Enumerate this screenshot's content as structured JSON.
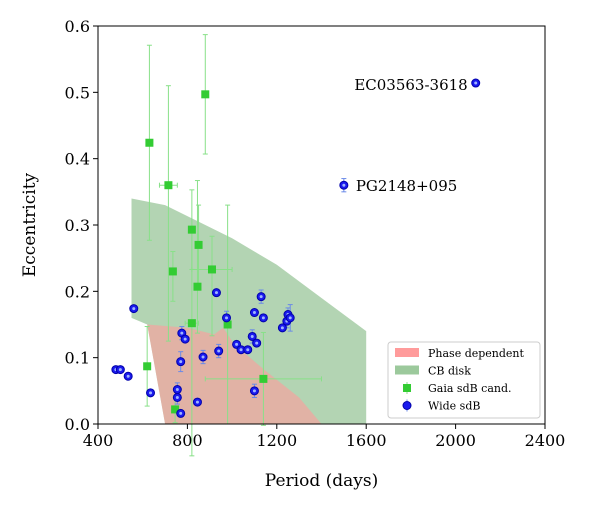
{
  "chart_data": {
    "type": "scatter",
    "xlabel": "Period (days)",
    "ylabel": "Eccentricity",
    "xlim": [
      400,
      2400
    ],
    "ylim": [
      0,
      0.6
    ],
    "xticks": [
      "400",
      "800",
      "1200",
      "1600",
      "2000",
      "2400"
    ],
    "yticks": [
      "0.0",
      "0.1",
      "0.2",
      "0.3",
      "0.4",
      "0.5",
      "0.6"
    ],
    "legend_position": "bottom-right",
    "legend": [
      {
        "label": "Phase dependent",
        "marker": "patch",
        "color": "#ff9b9b"
      },
      {
        "label": "CB disk",
        "marker": "patch",
        "color": "#9cc99c"
      },
      {
        "label": "Gaia sdB cand.",
        "marker": "square",
        "color": "#33cc33"
      },
      {
        "label": "Wide sdB",
        "marker": "circle",
        "color": "#1a1aee"
      }
    ],
    "regions": [
      {
        "name": "CB disk",
        "color": "#80b880",
        "polygon": [
          [
            550,
            0.34
          ],
          [
            700,
            0.33
          ],
          [
            1000,
            0.28
          ],
          [
            1200,
            0.24
          ],
          [
            1400,
            0.19
          ],
          [
            1600,
            0.14
          ],
          [
            1600,
            0.0
          ],
          [
            700,
            0.0
          ],
          [
            620,
            0.15
          ],
          [
            550,
            0.16
          ]
        ]
      },
      {
        "name": "Phase dependent",
        "color": "#ff9b9b",
        "polygon": [
          [
            620,
            0.15
          ],
          [
            800,
            0.145
          ],
          [
            920,
            0.135
          ],
          [
            960,
            0.145
          ],
          [
            1010,
            0.12
          ],
          [
            1150,
            0.08
          ],
          [
            1300,
            0.04
          ],
          [
            1400,
            0.0
          ],
          [
            700,
            0.0
          ]
        ]
      }
    ],
    "series": [
      {
        "name": "Gaia sdB cand.",
        "points": [
          {
            "x": 880,
            "y": 0.497,
            "yerr": [
              0.09,
              0.09
            ],
            "xerr": [
              0,
              0
            ]
          },
          {
            "x": 630,
            "y": 0.424,
            "yerr": [
              0.147,
              0.147
            ],
            "xerr": [
              0,
              0
            ]
          },
          {
            "x": 715,
            "y": 0.36,
            "yerr": [
              0.235,
              0.15
            ],
            "xerr": [
              40,
              40
            ]
          },
          {
            "x": 820,
            "y": 0.293,
            "yerr": [
              0.06,
              0.06
            ],
            "xerr": [
              0,
              0
            ]
          },
          {
            "x": 850,
            "y": 0.27,
            "yerr": [
              0.06,
              0.06
            ],
            "xerr": [
              0,
              0
            ]
          },
          {
            "x": 735,
            "y": 0.23,
            "yerr": [
              0.045,
              0.03
            ],
            "xerr": [
              0,
              0
            ]
          },
          {
            "x": 910,
            "y": 0.233,
            "yerr": [
              0.1,
              0.05
            ],
            "xerr": [
              90,
              90
            ]
          },
          {
            "x": 845,
            "y": 0.207,
            "yerr": [
              0.07,
              0.16
            ],
            "xerr": [
              0,
              0
            ]
          },
          {
            "x": 820,
            "y": 0.152,
            "yerr": [
              0.2,
              0.14
            ],
            "xerr": [
              30,
              30
            ]
          },
          {
            "x": 980,
            "y": 0.15,
            "yerr": [
              0.15,
              0.18
            ],
            "xerr": [
              0,
              0
            ]
          },
          {
            "x": 620,
            "y": 0.087,
            "yerr": [
              0.06,
              0.06
            ],
            "xerr": [
              0,
              0
            ]
          },
          {
            "x": 1140,
            "y": 0.068,
            "yerr": [
              0.07,
              0.07
            ],
            "xerr": [
              260,
              260
            ]
          },
          {
            "x": 745,
            "y": 0.022,
            "yerr": [
              0.02,
              0.02
            ],
            "xerr": [
              0,
              0
            ]
          }
        ]
      },
      {
        "name": "Wide sdB",
        "points": [
          {
            "x": 2090,
            "y": 0.514,
            "yerr": [
              0,
              0
            ],
            "xerr": [
              0,
              0
            ]
          },
          {
            "x": 1500,
            "y": 0.36,
            "yerr": [
              0.01,
              0.01
            ],
            "xerr": [
              0,
              0
            ]
          },
          {
            "x": 560,
            "y": 0.174,
            "yerr": [
              0,
              0
            ],
            "xerr": [
              0,
              0
            ]
          },
          {
            "x": 480,
            "y": 0.082,
            "yerr": [
              0,
              0
            ],
            "xerr": [
              0,
              0
            ]
          },
          {
            "x": 500,
            "y": 0.082,
            "yerr": [
              0,
              0
            ],
            "xerr": [
              0,
              0
            ]
          },
          {
            "x": 535,
            "y": 0.072,
            "yerr": [
              0,
              0
            ],
            "xerr": [
              0,
              0
            ]
          },
          {
            "x": 635,
            "y": 0.047,
            "yerr": [
              0,
              0
            ],
            "xerr": [
              0,
              0
            ]
          },
          {
            "x": 775,
            "y": 0.137,
            "yerr": [
              0.01,
              0.01
            ],
            "xerr": [
              0,
              0
            ]
          },
          {
            "x": 790,
            "y": 0.128,
            "yerr": [
              0,
              0
            ],
            "xerr": [
              0,
              0
            ]
          },
          {
            "x": 770,
            "y": 0.094,
            "yerr": [
              0.015,
              0.015
            ],
            "xerr": [
              0,
              0
            ]
          },
          {
            "x": 755,
            "y": 0.052,
            "yerr": [
              0.01,
              0.01
            ],
            "xerr": [
              0,
              0
            ]
          },
          {
            "x": 755,
            "y": 0.04,
            "yerr": [
              0.01,
              0.01
            ],
            "xerr": [
              0,
              0
            ]
          },
          {
            "x": 770,
            "y": 0.016,
            "yerr": [
              0,
              0
            ],
            "xerr": [
              0,
              0
            ]
          },
          {
            "x": 845,
            "y": 0.033,
            "yerr": [
              0,
              0
            ],
            "xerr": [
              0,
              0
            ]
          },
          {
            "x": 870,
            "y": 0.101,
            "yerr": [
              0.01,
              0.01
            ],
            "xerr": [
              0,
              0
            ]
          },
          {
            "x": 930,
            "y": 0.198,
            "yerr": [
              0,
              0
            ],
            "xerr": [
              0,
              0
            ]
          },
          {
            "x": 940,
            "y": 0.11,
            "yerr": [
              0.01,
              0.01
            ],
            "xerr": [
              0,
              0
            ]
          },
          {
            "x": 975,
            "y": 0.16,
            "yerr": [
              0.01,
              0.01
            ],
            "xerr": [
              0,
              0
            ]
          },
          {
            "x": 1020,
            "y": 0.12,
            "yerr": [
              0,
              0
            ],
            "xerr": [
              0,
              0
            ]
          },
          {
            "x": 1040,
            "y": 0.112,
            "yerr": [
              0,
              0
            ],
            "xerr": [
              0,
              0
            ]
          },
          {
            "x": 1070,
            "y": 0.112,
            "yerr": [
              0,
              0
            ],
            "xerr": [
              0,
              0
            ]
          },
          {
            "x": 1090,
            "y": 0.132,
            "yerr": [
              0.01,
              0.01
            ],
            "xerr": [
              0,
              0
            ]
          },
          {
            "x": 1100,
            "y": 0.168,
            "yerr": [
              0,
              0
            ],
            "xerr": [
              0,
              0
            ]
          },
          {
            "x": 1110,
            "y": 0.122,
            "yerr": [
              0,
              0
            ],
            "xerr": [
              0,
              0
            ]
          },
          {
            "x": 1130,
            "y": 0.192,
            "yerr": [
              0.01,
              0.01
            ],
            "xerr": [
              0,
              0
            ]
          },
          {
            "x": 1140,
            "y": 0.16,
            "yerr": [
              0,
              0
            ],
            "xerr": [
              0,
              0
            ]
          },
          {
            "x": 1100,
            "y": 0.05,
            "yerr": [
              0.01,
              0.01
            ],
            "xerr": [
              0,
              0
            ]
          },
          {
            "x": 1225,
            "y": 0.145,
            "yerr": [
              0,
              0
            ],
            "xerr": [
              0,
              0
            ]
          },
          {
            "x": 1245,
            "y": 0.155,
            "yerr": [
              0.01,
              0.01
            ],
            "xerr": [
              0,
              0
            ]
          },
          {
            "x": 1250,
            "y": 0.165,
            "yerr": [
              0.01,
              0.01
            ],
            "xerr": [
              0,
              0
            ]
          },
          {
            "x": 1260,
            "y": 0.16,
            "yerr": [
              0.02,
              0.02
            ],
            "xerr": [
              0,
              0
            ]
          }
        ]
      }
    ],
    "annotations": [
      {
        "text": "EC03563-3618",
        "x": 2090,
        "y": 0.514
      },
      {
        "text": "PG2148+095",
        "x": 1500,
        "y": 0.36
      }
    ]
  }
}
